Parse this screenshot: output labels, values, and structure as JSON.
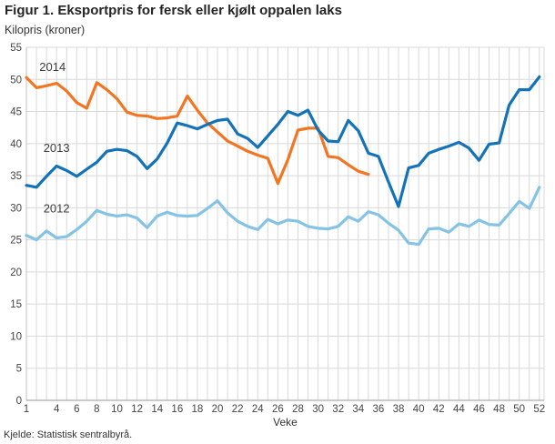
{
  "header": {
    "title": "Figur 1. Eksportpris for fersk eller kjølt oppalen laks",
    "subtitle": "Kilopris (kroner)"
  },
  "footer": {
    "source": "Kjelde: Statistisk sentralbyrå."
  },
  "chart_data": {
    "type": "line",
    "title": "Figur 1. Eksportpris for fersk eller kjølt oppalen laks",
    "ylabel": "Kilopris (kroner)",
    "xlabel": "Veke",
    "ylim": [
      0,
      55
    ],
    "ytick_step": 5,
    "xlim": [
      1,
      52
    ],
    "xticks": [
      1,
      4,
      6,
      8,
      10,
      12,
      14,
      16,
      18,
      20,
      22,
      24,
      26,
      28,
      30,
      32,
      34,
      36,
      38,
      40,
      42,
      44,
      46,
      48,
      50,
      52
    ],
    "grid": true,
    "legend_position": "inline-labels",
    "colors": {
      "grid": "#d9d9d9",
      "axis": "#9a9a9a",
      "left_axis": "#c0c0c0",
      "text": "#444444"
    },
    "series": [
      {
        "name": "2012",
        "color": "#85c3e6",
        "z": 1,
        "label_anchor": {
          "week": 4.0,
          "value": 29.3
        },
        "values": [
          25.7,
          25.0,
          26.4,
          25.3,
          25.5,
          26.6,
          27.9,
          29.6,
          29.0,
          28.7,
          28.9,
          28.4,
          26.9,
          28.7,
          29.3,
          28.8,
          28.7,
          28.8,
          29.9,
          31.1,
          29.2,
          27.9,
          27.1,
          26.6,
          28.2,
          27.5,
          28.1,
          27.9,
          27.1,
          26.8,
          26.7,
          27.1,
          28.6,
          27.9,
          29.4,
          28.9,
          27.6,
          26.5,
          24.5,
          24.3,
          26.7,
          26.8,
          26.2,
          27.5,
          27.1,
          28.1,
          27.4,
          27.3,
          29.1,
          31.0,
          29.9,
          33.2
        ]
      },
      {
        "name": "2013",
        "color": "#1472b8",
        "z": 3,
        "label_anchor": {
          "week": 4.0,
          "value": 38.7
        },
        "values": [
          33.5,
          33.2,
          34.9,
          36.5,
          35.8,
          34.9,
          36.0,
          37.1,
          38.8,
          39.1,
          38.9,
          38.0,
          36.1,
          37.6,
          40.1,
          43.2,
          42.8,
          42.3,
          43.0,
          43.6,
          43.8,
          41.5,
          40.8,
          39.4,
          41.2,
          43.0,
          45.0,
          44.4,
          45.2,
          42.1,
          40.4,
          40.3,
          43.6,
          42.0,
          38.5,
          38.0,
          34.0,
          30.2,
          36.2,
          36.6,
          38.5,
          39.1,
          39.6,
          40.2,
          39.3,
          37.4,
          39.9,
          40.1,
          46.0,
          48.4,
          48.4,
          50.4
        ]
      },
      {
        "name": "2014",
        "color": "#f27621",
        "z": 2,
        "label_anchor": {
          "week": 3.6,
          "value": 51.3
        },
        "values": [
          50.3,
          48.7,
          49.0,
          49.4,
          48.2,
          46.4,
          45.5,
          49.5,
          48.4,
          47.0,
          44.9,
          44.4,
          44.3,
          43.9,
          44.0,
          44.3,
          47.4,
          45.2,
          43.2,
          41.8,
          40.4,
          39.6,
          38.8,
          38.2,
          37.7,
          33.8,
          37.5,
          42.1,
          42.4,
          42.4,
          38.0,
          37.8,
          36.7,
          35.7,
          35.2
        ]
      }
    ]
  }
}
